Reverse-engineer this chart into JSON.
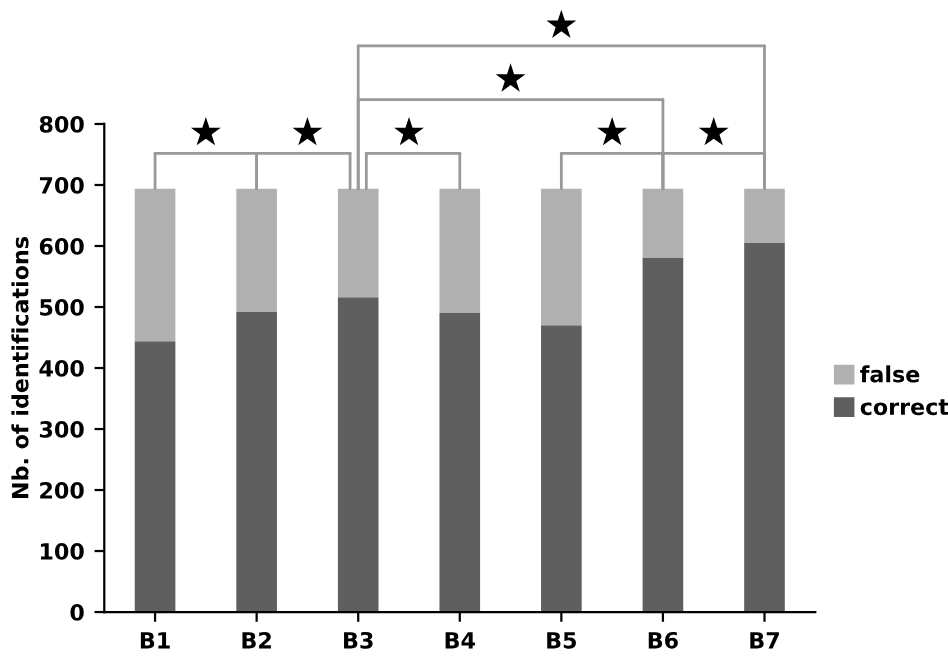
{
  "chart_data": {
    "type": "bar",
    "stacked": true,
    "ylabel": "Nb. of identifications",
    "categories": [
      "B1",
      "B2",
      "B3",
      "B4",
      "B5",
      "B6",
      "B7"
    ],
    "series": [
      {
        "name": "correct",
        "color": "#5f5f5f",
        "values": [
          444,
          492,
          516,
          490,
          470,
          581,
          605
        ]
      },
      {
        "name": "false",
        "color": "#b0b0b0",
        "values": [
          250,
          202,
          178,
          204,
          224,
          113,
          89
        ]
      }
    ],
    "ylim": [
      0,
      800
    ],
    "yticks": [
      0,
      100,
      200,
      300,
      400,
      500,
      600,
      700,
      800
    ],
    "grid": false,
    "legend": "right",
    "annotations": [
      "★",
      "★",
      "★",
      "★",
      "★",
      "★",
      "★"
    ]
  }
}
